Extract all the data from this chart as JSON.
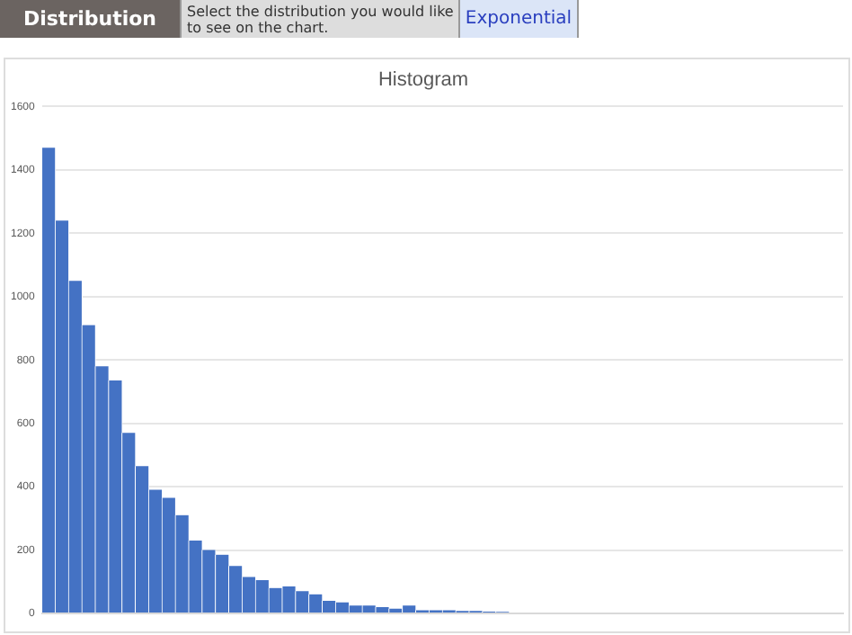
{
  "chart_data": {
    "type": "bar",
    "title": "Histogram",
    "annotations": [
      "Distribution",
      "Select the distribution you would like to see on the chart.",
      "Exponential"
    ],
    "categories": [
      null,
      null,
      null,
      null,
      null,
      null,
      null,
      null,
      null,
      null,
      null,
      null,
      null,
      null,
      null,
      null,
      null,
      null,
      null,
      null,
      null,
      null,
      null,
      null,
      null,
      null,
      null,
      null,
      null,
      null,
      null,
      null,
      null,
      null,
      null,
      null,
      null,
      null,
      null,
      null,
      null,
      null,
      null,
      null,
      null,
      null,
      null,
      null,
      null,
      null,
      null,
      null,
      null,
      null,
      null,
      null,
      null,
      null,
      null,
      null
    ],
    "values": [
      1470,
      1240,
      1050,
      910,
      780,
      735,
      570,
      465,
      390,
      365,
      310,
      230,
      200,
      185,
      150,
      115,
      105,
      80,
      85,
      70,
      60,
      40,
      35,
      25,
      25,
      20,
      15,
      25,
      10,
      10,
      10,
      8,
      8,
      6,
      5,
      null,
      null,
      0,
      0,
      0,
      0,
      0,
      0,
      0,
      0,
      0,
      0,
      0,
      0,
      0,
      0,
      0,
      0,
      0,
      0,
      0,
      0,
      0,
      0,
      0
    ],
    "color": "#4472c4",
    "ylim": [
      0,
      1600
    ],
    "yticks": [
      0,
      200,
      400,
      600,
      800,
      1000,
      1200,
      1400,
      1600
    ],
    "grid": "y",
    "legend": false
  }
}
